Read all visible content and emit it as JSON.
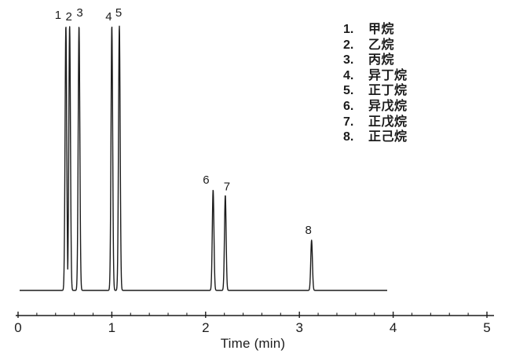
{
  "figure": {
    "background": "#ffffff",
    "ink_color": "#1c1c1c"
  },
  "chart_data": {
    "type": "line",
    "subtype": "chromatogram",
    "title": "",
    "xlabel": "Time (min)",
    "ylabel": "",
    "xlim": [
      0,
      5
    ],
    "x_ticks": [
      "0",
      "1",
      "2",
      "3",
      "4",
      "5"
    ],
    "x_minor_tick_step": 0.2,
    "grid": "off",
    "legend_position": "top-right",
    "peaks": [
      {
        "n": "1",
        "time_min": 0.51,
        "rel_height": 1.0,
        "compound": "甲烷",
        "label_dx": -10,
        "label_dy": -9
      },
      {
        "n": "2",
        "time_min": 0.55,
        "rel_height": 1.0,
        "compound": "乙烷",
        "label_dx": -1,
        "label_dy": -7
      },
      {
        "n": "3",
        "time_min": 0.65,
        "rel_height": 1.0,
        "compound": "丙烷",
        "label_dx": 1,
        "label_dy": -12
      },
      {
        "n": "4",
        "time_min": 1.0,
        "rel_height": 1.0,
        "compound": "异丁烷",
        "label_dx": -4,
        "label_dy": -7
      },
      {
        "n": "5",
        "time_min": 1.08,
        "rel_height": 1.0,
        "compound": "正丁烷",
        "label_dx": -1,
        "label_dy": -12
      },
      {
        "n": "6",
        "time_min": 2.08,
        "rel_height": 0.38,
        "compound": "异戊烷",
        "label_dx": -9,
        "label_dy": -8
      },
      {
        "n": "7",
        "time_min": 2.21,
        "rel_height": 0.36,
        "compound": "正戊烷",
        "label_dx": 2,
        "label_dy": -6
      },
      {
        "n": "8",
        "time_min": 3.13,
        "rel_height": 0.19,
        "compound": "正己烷",
        "label_dx": -4,
        "label_dy": -8
      }
    ],
    "legend": [
      {
        "number": "1.",
        "name": "甲烷"
      },
      {
        "number": "2.",
        "name": "乙烷"
      },
      {
        "number": "3.",
        "name": "丙烷"
      },
      {
        "number": "4.",
        "name": "异丁烷"
      },
      {
        "number": "5.",
        "name": "正丁烷"
      },
      {
        "number": "6.",
        "name": "异戊烷"
      },
      {
        "number": "7.",
        "name": "正戊烷"
      },
      {
        "number": "8.",
        "name": "正己烷"
      }
    ]
  }
}
